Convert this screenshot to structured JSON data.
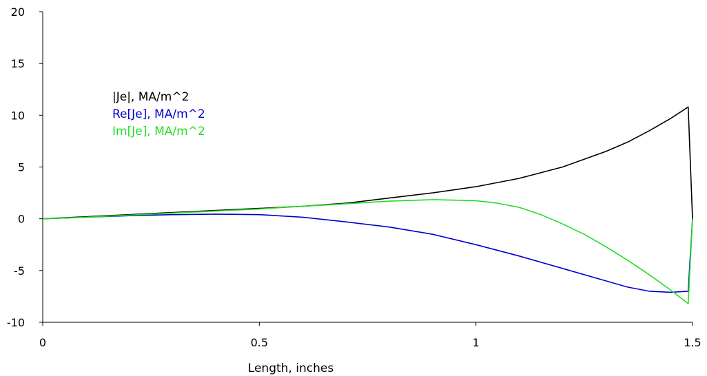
{
  "chart_data": {
    "type": "line",
    "title": "",
    "xlabel": "Length, inches",
    "ylabel": "",
    "xlim": [
      0,
      1.5
    ],
    "ylim": [
      -10,
      20
    ],
    "xticks": [
      0,
      0.5,
      1,
      1.5
    ],
    "xtick_labels": [
      "0",
      "0.5",
      "1",
      "1.5"
    ],
    "yticks": [
      -10,
      -5,
      0,
      5,
      10,
      15,
      20
    ],
    "ytick_labels": [
      "-10",
      "-5",
      "0",
      "5",
      "10",
      "15",
      "20"
    ],
    "grid": false,
    "legend_position": "upper-left",
    "series": [
      {
        "name": "|Je|, MA/m^2",
        "color": "#000000",
        "x": [
          0,
          0.1,
          0.2,
          0.3,
          0.4,
          0.5,
          0.6,
          0.7,
          0.8,
          0.9,
          1.0,
          1.1,
          1.2,
          1.3,
          1.35,
          1.4,
          1.45,
          1.49,
          1.5
        ],
        "y": [
          0,
          0.2,
          0.4,
          0.6,
          0.8,
          1.0,
          1.2,
          1.5,
          2.0,
          2.5,
          3.1,
          3.9,
          5.0,
          6.5,
          7.4,
          8.5,
          9.7,
          10.8,
          0
        ]
      },
      {
        "name": "Re[Je], MA/m^2",
        "color": "#0000cc",
        "x": [
          0,
          0.1,
          0.2,
          0.3,
          0.4,
          0.5,
          0.6,
          0.7,
          0.8,
          0.9,
          1.0,
          1.1,
          1.2,
          1.3,
          1.35,
          1.4,
          1.45,
          1.49,
          1.5
        ],
        "y": [
          0,
          0.15,
          0.3,
          0.4,
          0.45,
          0.4,
          0.15,
          -0.3,
          -0.8,
          -1.5,
          -2.5,
          -3.6,
          -4.8,
          -6.0,
          -6.6,
          -7.0,
          -7.1,
          -7.0,
          0
        ]
      },
      {
        "name": "Im[Je], MA/m^2",
        "color": "#22dd22",
        "x": [
          0,
          0.1,
          0.2,
          0.3,
          0.4,
          0.5,
          0.6,
          0.7,
          0.8,
          0.9,
          1.0,
          1.05,
          1.1,
          1.15,
          1.2,
          1.25,
          1.3,
          1.35,
          1.4,
          1.45,
          1.49,
          1.5
        ],
        "y": [
          0,
          0.15,
          0.35,
          0.55,
          0.75,
          0.95,
          1.2,
          1.45,
          1.7,
          1.85,
          1.75,
          1.5,
          1.1,
          0.4,
          -0.5,
          -1.5,
          -2.7,
          -4.0,
          -5.4,
          -6.9,
          -8.2,
          0
        ]
      }
    ]
  }
}
